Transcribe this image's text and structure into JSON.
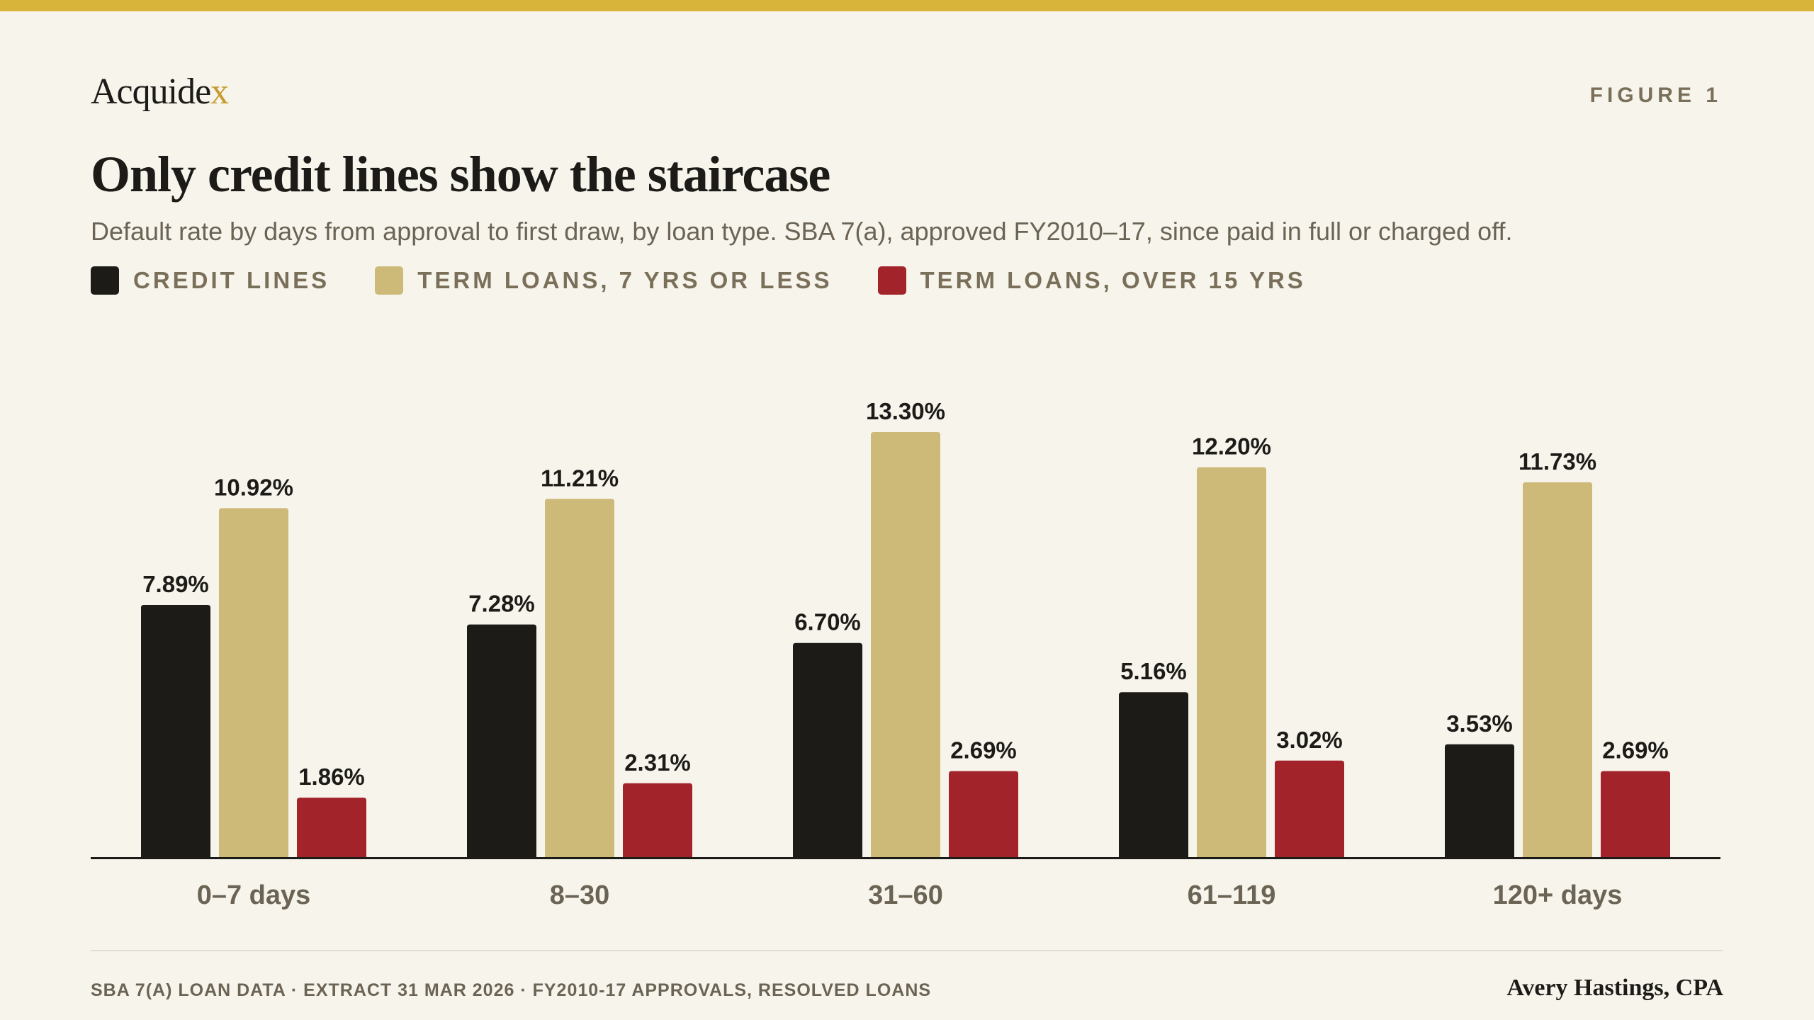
{
  "brand": {
    "logo_main": "Acquide",
    "logo_x": "x",
    "accent": "#d9b43a"
  },
  "figure_label": "FIGURE 1",
  "legend": [
    {
      "label": "CREDIT LINES",
      "color": "#1c1b17"
    },
    {
      "label": "TERM LOANS, 7 YRS OR LESS",
      "color": "#cdb978"
    },
    {
      "label": "TERM LOANS, OVER 15 YRS",
      "color": "#a3232b"
    }
  ],
  "footer": {
    "source": "SBA 7(A) LOAN DATA · EXTRACT 31 MAR 2026 · FY2010-17 APPROVALS, RESOLVED LOANS",
    "author": "Avery Hastings, CPA"
  },
  "chart_data": {
    "type": "bar",
    "title": "Only credit lines show the staircase",
    "subtitle": "Default rate by days from approval to first draw, by loan type. SBA 7(a), approved FY2010–17, since paid in full or charged off.",
    "categories": [
      "0–7 days",
      "8–30",
      "31–60",
      "61–119",
      "120+ days"
    ],
    "series": [
      {
        "name": "CREDIT LINES",
        "color": "#1c1b17",
        "values": [
          7.89,
          7.28,
          6.7,
          5.16,
          3.53
        ],
        "labels": [
          "7.89%",
          "7.28%",
          "6.70%",
          "5.16%",
          "3.53%"
        ]
      },
      {
        "name": "TERM LOANS, 7 YRS OR LESS",
        "color": "#cdb978",
        "values": [
          10.92,
          11.21,
          13.3,
          12.2,
          11.73
        ],
        "labels": [
          "10.92%",
          "11.21%",
          "13.30%",
          "12.20%",
          "11.73%"
        ]
      },
      {
        "name": "TERM LOANS, OVER 15 YRS",
        "color": "#a3232b",
        "values": [
          1.86,
          2.31,
          2.69,
          3.02,
          2.69
        ],
        "labels": [
          "1.86%",
          "2.31%",
          "2.69%",
          "3.02%",
          "2.69%"
        ]
      }
    ],
    "xlabel": "",
    "ylabel": "",
    "ylim": [
      0,
      13.3
    ],
    "grid": false,
    "legend_position": "top-left"
  }
}
